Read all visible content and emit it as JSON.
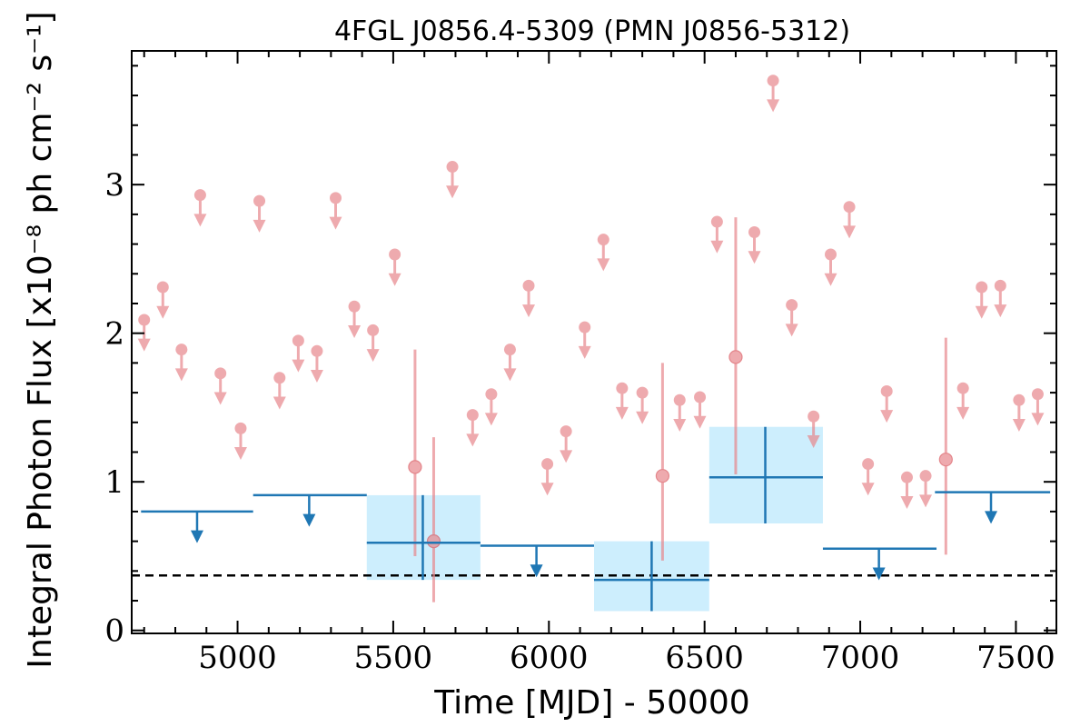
{
  "chart_data": {
    "type": "scatter",
    "title": "4FGL J0856.4-5309 (PMN J0856-5312)",
    "xlabel": "Time [MJD] - 50000",
    "ylabel": "Integral Photon Flux [x10⁻⁸ ph cm⁻² s⁻¹]",
    "xlim": [
      4660,
      7630
    ],
    "ylim": [
      -0.02,
      3.9
    ],
    "xticks": [
      5000,
      5500,
      6000,
      6500,
      7000,
      7500
    ],
    "xtick_labels": [
      "5000",
      "5500",
      "6000",
      "6500",
      "7000",
      "7500"
    ],
    "yticks": [
      0,
      1,
      2,
      3
    ],
    "ytick_labels": [
      "0",
      "1",
      "2",
      "3"
    ],
    "grid": false,
    "legend": "none",
    "colors": {
      "short_bins": "#e8878c",
      "long_bins": "#1f77b4",
      "error_box": "#cdeefd",
      "reference_line": "#000000"
    },
    "reference_line": {
      "y": 0.37,
      "style": "dashed"
    },
    "series": [
      {
        "kind": "short-bin-upper-limits",
        "x": [
          4700,
          4760,
          4820,
          4880,
          4945,
          5010,
          5135,
          5070,
          5195,
          5255,
          5315,
          5375,
          5435,
          5505,
          5690,
          5815,
          5755,
          5875,
          5935,
          5995,
          6055,
          6115,
          6175,
          6235,
          6300,
          6420,
          6485,
          6540,
          6660,
          6720,
          6780,
          6850,
          6905,
          6965,
          7025,
          7085,
          7150,
          7210,
          7330,
          7390,
          7450,
          7510,
          7570
        ],
        "y": [
          2.09,
          2.31,
          1.89,
          2.93,
          1.73,
          1.36,
          1.7,
          2.89,
          1.95,
          1.88,
          2.91,
          2.18,
          2.02,
          2.53,
          3.12,
          1.59,
          1.45,
          1.89,
          2.32,
          1.12,
          1.34,
          2.04,
          2.63,
          1.63,
          1.6,
          1.55,
          1.57,
          2.75,
          2.68,
          3.7,
          2.19,
          1.44,
          2.53,
          2.85,
          1.12,
          1.61,
          1.03,
          1.04,
          1.63,
          2.31,
          2.32,
          1.55,
          1.59
        ]
      },
      {
        "kind": "short-bin-detections",
        "x": [
          5570,
          5630,
          6365,
          6600,
          7275
        ],
        "y": [
          1.1,
          0.6,
          1.04,
          1.84,
          1.15
        ],
        "y_err_low": [
          0.5,
          0.19,
          0.47,
          1.05,
          0.51
        ],
        "y_err_high": [
          1.89,
          1.3,
          1.8,
          2.78,
          1.97
        ]
      },
      {
        "kind": "long-bin-upper-limits",
        "x_start": [
          4690,
          5050,
          5780,
          6880,
          7240
        ],
        "x_end": [
          5050,
          5415,
          6145,
          7245,
          7610
        ],
        "x_center": [
          4870,
          5230,
          5960,
          7060,
          7420
        ],
        "y": [
          0.8,
          0.91,
          0.57,
          0.55,
          0.93
        ]
      },
      {
        "kind": "long-bin-detections",
        "x_center": [
          5595,
          6330,
          6695
        ],
        "x_start": [
          5415,
          6145,
          6515
        ],
        "x_end": [
          5780,
          6515,
          6880
        ],
        "y": [
          0.59,
          0.34,
          1.03
        ],
        "y_err_low": [
          0.34,
          0.13,
          0.72
        ],
        "y_err_high": [
          0.91,
          0.6,
          1.37
        ]
      }
    ]
  }
}
